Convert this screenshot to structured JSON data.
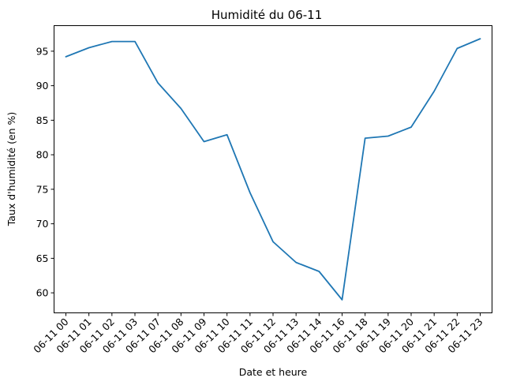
{
  "chart_data": {
    "type": "line",
    "title": "Humidité du 06-11",
    "xlabel": "Date et heure",
    "ylabel": "Taux d'humidité (en %)",
    "categories": [
      "06-11 00",
      "06-11 01",
      "06-11 02",
      "06-11 03",
      "06-11 07",
      "06-11 08",
      "06-11 09",
      "06-11 10",
      "06-11 11",
      "06-11 12",
      "06-11 13",
      "06-11 14",
      "06-11 16",
      "06-11 18",
      "06-11 19",
      "06-11 20",
      "06-11 21",
      "06-11 22",
      "06-11 23"
    ],
    "values": [
      94.2,
      95.5,
      96.4,
      96.4,
      90.4,
      86.7,
      81.9,
      82.9,
      74.5,
      67.4,
      64.4,
      63.1,
      59.0,
      82.4,
      82.7,
      84.0,
      89.2,
      95.4,
      96.8
    ],
    "yticks": [
      60,
      65,
      70,
      75,
      80,
      85,
      90,
      95
    ],
    "ylim": [
      57.1,
      98.7
    ],
    "grid": false,
    "color": "#1f77b4"
  }
}
